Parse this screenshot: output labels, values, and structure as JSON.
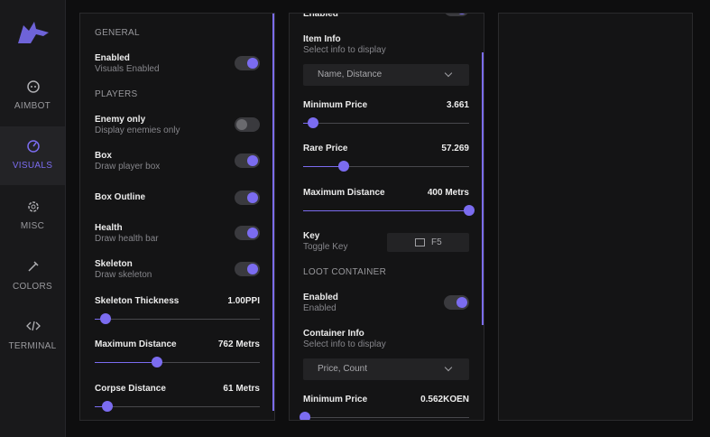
{
  "sidebar": {
    "items": [
      {
        "label": "AIMBOT"
      },
      {
        "label": "VISUALS",
        "active": true
      },
      {
        "label": "MISC"
      },
      {
        "label": "COLORS"
      },
      {
        "label": "TERMINAL"
      }
    ]
  },
  "panels": [
    {
      "rows": [
        {
          "section": "GENERAL"
        },
        {
          "label": "Enabled",
          "sub": "Visuals Enabled",
          "on": true
        },
        {
          "section": "PLAYERS"
        },
        {
          "label": "Enemy only",
          "sub": "Display enemies only",
          "on": false
        },
        {
          "label": "Box",
          "sub": "Draw player box",
          "on": true
        },
        {
          "label": "Box Outline",
          "on": true
        },
        {
          "label": "Health",
          "sub": "Draw health bar",
          "on": true
        },
        {
          "label": "Skeleton",
          "sub": "Draw skeleton",
          "on": true
        },
        {
          "label": "Skeleton Thickness",
          "value": "1.00PPI"
        },
        {
          "label": "Maximum Distance",
          "value": "762 Metrs"
        },
        {
          "label": "Corpse Distance",
          "value": "61 Metrs"
        }
      ]
    },
    {
      "rows": [
        {
          "label": "Enabled",
          "on": true
        },
        {
          "label": "Item Info",
          "sub": "Select info to display",
          "selected": "Name, Distance"
        },
        {
          "label": "Minimum Price",
          "value": "3.661"
        },
        {
          "label": "Rare Price",
          "value": "57.269"
        },
        {
          "label": "Maximum Distance",
          "value": "400 Metrs"
        },
        {
          "label": "Key",
          "sub": "Toggle Key",
          "key": "F5"
        },
        {
          "section": "LOOT CONTAINER"
        },
        {
          "label": "Enabled",
          "sub": "Enabled",
          "on": true
        },
        {
          "label": "Container Info",
          "sub": "Select info to display",
          "selected": "Price, Count"
        },
        {
          "label": "Minimum Price",
          "value": "0.562KOEN"
        }
      ]
    },
    {
      "rows": []
    }
  ]
}
